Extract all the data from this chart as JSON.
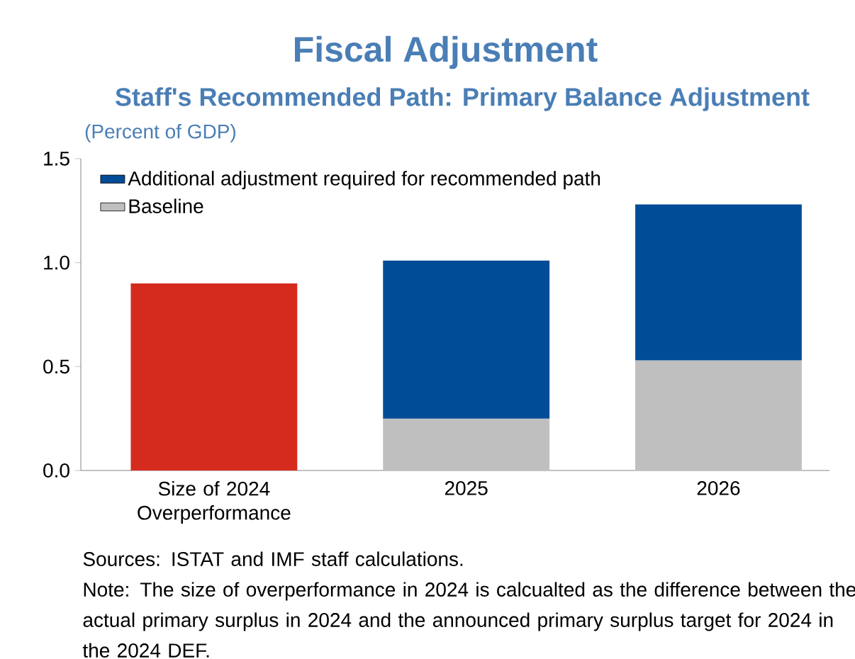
{
  "chart_data": {
    "type": "bar",
    "stacked": true,
    "title": "Fiscal Adjustment",
    "subtitle": "Staff's Recommended Path: Primary Balance Adjustment",
    "ylabel": "(Percent of GDP)",
    "categories": [
      "Size of 2024 Overperformance",
      "2025",
      "2026"
    ],
    "series": [
      {
        "color": "#d52b1e",
        "values": [
          0.9,
          null,
          null
        ]
      },
      {
        "name": "Baseline",
        "color": "#bfbfbf",
        "values": [
          null,
          0.25,
          0.53
        ]
      },
      {
        "name": "Additional adjustment required for recommended path",
        "color": "#004c97",
        "values": [
          null,
          0.76,
          0.75
        ]
      }
    ],
    "ylim": [
      0,
      1.5
    ],
    "yticks": [
      {
        "value": 0,
        "label": "0.0"
      },
      {
        "value": 0.5,
        "label": "0.5"
      },
      {
        "value": 1,
        "label": "1.0"
      },
      {
        "value": 1.5,
        "label": "1.5"
      }
    ],
    "legend": "top left",
    "annotations": [
      "Sources: ISTAT and IMF staff calculations.",
      "Note: The size of overperformance in 2024 is calcualted as the difference between the actual primary surplus in 2024 and the announced primary surplus target for 2024 in the 2024 DEF."
    ]
  }
}
